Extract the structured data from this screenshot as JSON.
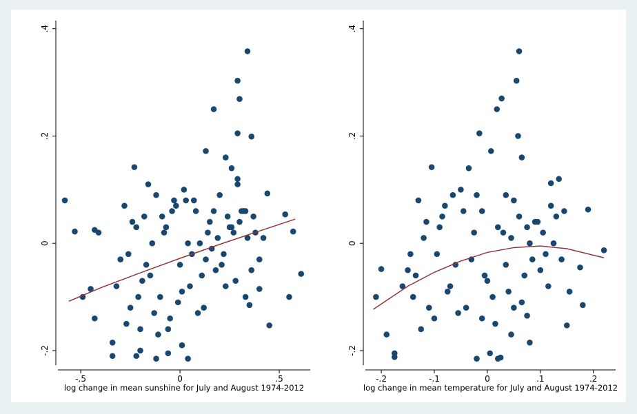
{
  "chart_data": [
    {
      "type": "scatter",
      "xlabel": "log change in mean sunshine for July and August 1974-2012",
      "color": "#1a476f",
      "x": [
        0.34,
        0.29,
        0.3,
        0.17,
        0.29,
        0.36,
        0.13,
        0.23,
        -0.23,
        0.26,
        0.29,
        0.29,
        -0.58,
        -0.53,
        -0.43,
        -0.41,
        0.61,
        0.55,
        0.45,
        -0.49,
        -0.45,
        -0.43,
        -0.34,
        -0.34,
        -0.12,
        -0.06,
        0.04,
        0.01,
        -0.22,
        -0.2,
        0.33,
        0.35,
        0.4,
        0.44,
        0.53,
        0.57,
        -0.3,
        -0.28,
        -0.25,
        -0.22,
        -0.2,
        -0.18,
        -0.15,
        -0.12,
        -0.1,
        -0.08,
        -0.05,
        -0.03,
        0.0,
        0.02,
        0.05,
        0.08,
        0.1,
        0.12,
        0.15,
        0.18,
        0.2,
        0.22,
        0.25,
        0.28,
        0.31,
        0.34,
        0.37,
        0.4,
        -0.32,
        -0.27,
        -0.24,
        -0.19,
        -0.16,
        -0.13,
        -0.09,
        -0.06,
        -0.02,
        0.01,
        0.04,
        0.07,
        0.11,
        0.14,
        0.17,
        0.21,
        0.24,
        0.27,
        0.3,
        0.33,
        0.36,
        0.42,
        -0.26,
        -0.21,
        -0.17,
        -0.11,
        -0.07,
        -0.01,
        0.03,
        0.06,
        0.09,
        0.13,
        0.19,
        0.23,
        0.32,
        0.38,
        -0.14,
        -0.04,
        0.16,
        0.26
      ],
      "values": [
        0.358,
        0.303,
        0.269,
        0.25,
        0.205,
        0.199,
        0.172,
        0.16,
        0.142,
        0.14,
        0.12,
        0.11,
        0.08,
        0.022,
        0.025,
        0.02,
        -0.057,
        -0.1,
        -0.153,
        -0.1,
        -0.085,
        -0.14,
        -0.185,
        -0.21,
        -0.215,
        -0.205,
        -0.215,
        -0.19,
        -0.21,
        -0.2,
        -0.1,
        -0.115,
        -0.085,
        0.093,
        0.054,
        0.022,
        -0.03,
        0.07,
        -0.12,
        0.03,
        -0.16,
        0.05,
        -0.06,
        0.09,
        -0.1,
        0.02,
        -0.14,
        0.08,
        -0.04,
        0.1,
        -0.08,
        0.06,
        0.0,
        -0.12,
        0.04,
        -0.05,
        0.09,
        -0.02,
        0.03,
        -0.07,
        0.06,
        0.01,
        0.05,
        -0.03,
        -0.08,
        -0.15,
        0.04,
        -0.07,
        0.11,
        -0.13,
        0.05,
        -0.16,
        0.07,
        -0.09,
        0.0,
        0.08,
        -0.06,
        0.02,
        0.06,
        -0.04,
        0.05,
        0.02,
        0.04,
        0.06,
        -0.05,
        0.01,
        -0.02,
        -0.1,
        -0.04,
        -0.17,
        0.03,
        -0.11,
        0.08,
        -0.02,
        -0.13,
        -0.03,
        0.01,
        -0.08,
        0.06,
        0.02,
        0.0,
        0.06,
        -0.01,
        0.03
      ],
      "fit": {
        "color": "#90353b",
        "x": [
          -0.56,
          -0.4,
          -0.2,
          0.0,
          0.2,
          0.4,
          0.58
        ],
        "values": [
          -0.108,
          -0.083,
          -0.055,
          -0.028,
          -0.002,
          0.023,
          0.045
        ]
      },
      "xlim": [
        -0.615,
        0.656
      ],
      "ylim": [
        -0.227,
        0.415
      ],
      "xticks": [
        {
          "value": -0.5,
          "label": "-.5"
        },
        0,
        {
          "value": 0.5,
          "label": ".5"
        }
      ],
      "yticks": [
        {
          "value": -0.2,
          "label": "-.2"
        },
        0,
        {
          "value": 0.2,
          "label": ".2"
        },
        {
          "value": 0.4,
          "label": ".4"
        }
      ]
    },
    {
      "type": "scatter",
      "xlabel": "log change in mean temperature for July and August 1974-2012",
      "color": "#1a476f",
      "x": [
        0.06,
        0.055,
        0.027,
        0.018,
        -0.015,
        0.058,
        0.007,
        0.065,
        -0.105,
        -0.035,
        -0.21,
        -0.2,
        -0.19,
        -0.175,
        -0.175,
        0.22,
        0.19,
        0.175,
        0.18,
        0.15,
        -0.02,
        0.005,
        0.02,
        0.025,
        0.045,
        0.08,
        0.075,
        0.135,
        0.12,
        -0.15,
        -0.13,
        -0.11,
        -0.09,
        -0.07,
        -0.05,
        -0.03,
        -0.01,
        0.01,
        0.03,
        0.05,
        0.07,
        0.09,
        0.11,
        0.13,
        -0.14,
        -0.12,
        -0.1,
        -0.08,
        -0.06,
        -0.04,
        -0.02,
        0.0,
        0.02,
        0.04,
        0.06,
        0.08,
        0.1,
        0.12,
        0.14,
        -0.16,
        -0.125,
        -0.085,
        -0.055,
        -0.025,
        0.015,
        0.035,
        0.065,
        0.095,
        0.115,
        0.145,
        -0.145,
        -0.115,
        -0.075,
        -0.045,
        -0.005,
        0.045,
        0.085,
        0.105,
        0.155,
        -0.095,
        -0.065,
        0.035,
        0.075,
        0.125,
        -0.135,
        -0.01,
        0.05
      ],
      "values": [
        0.358,
        0.303,
        0.27,
        0.25,
        0.205,
        0.2,
        0.172,
        0.16,
        0.142,
        0.14,
        -0.1,
        -0.048,
        -0.17,
        -0.205,
        -0.212,
        -0.013,
        0.063,
        -0.045,
        -0.115,
        -0.153,
        -0.215,
        -0.205,
        -0.215,
        -0.213,
        -0.17,
        -0.185,
        -0.135,
        0.12,
        0.112,
        -0.05,
        0.08,
        -0.12,
        0.03,
        -0.08,
        0.1,
        -0.03,
        0.06,
        -0.1,
        0.02,
        0.08,
        -0.06,
        0.04,
        -0.02,
        0.05,
        -0.1,
        0.01,
        -0.14,
        0.07,
        -0.04,
        -0.12,
        0.09,
        -0.07,
        0.03,
        -0.09,
        0.05,
        0.0,
        -0.05,
        0.07,
        -0.03,
        -0.08,
        -0.16,
        0.05,
        -0.13,
        0.02,
        -0.15,
        0.09,
        -0.11,
        0.04,
        -0.08,
        0.06,
        -0.02,
        0.04,
        -0.09,
        0.06,
        -0.06,
        0.01,
        -0.03,
        0.02,
        -0.09,
        -0.02,
        0.09,
        -0.04,
        0.03,
        0.0,
        -0.06,
        -0.14,
        -0.12
      ],
      "fit": {
        "color": "#90353b",
        "x": [
          -0.215,
          -0.15,
          -0.1,
          -0.05,
          0.0,
          0.05,
          0.1,
          0.15,
          0.22
        ],
        "values": [
          -0.123,
          -0.08,
          -0.054,
          -0.033,
          -0.017,
          -0.008,
          -0.005,
          -0.01,
          -0.027
        ]
      },
      "xlim": [
        -0.23,
        0.242
      ],
      "ylim": [
        -0.227,
        0.415
      ],
      "xticks": [
        {
          "value": -0.2,
          "label": "-.2"
        },
        {
          "value": -0.1,
          "label": "-.1"
        },
        0,
        {
          "value": 0.1,
          "label": ".1"
        },
        {
          "value": 0.2,
          "label": ".2"
        }
      ],
      "yticks": [
        {
          "value": -0.2,
          "label": "-.2"
        },
        0,
        {
          "value": 0.2,
          "label": ".2"
        },
        {
          "value": 0.4,
          "label": ".4"
        }
      ]
    }
  ]
}
